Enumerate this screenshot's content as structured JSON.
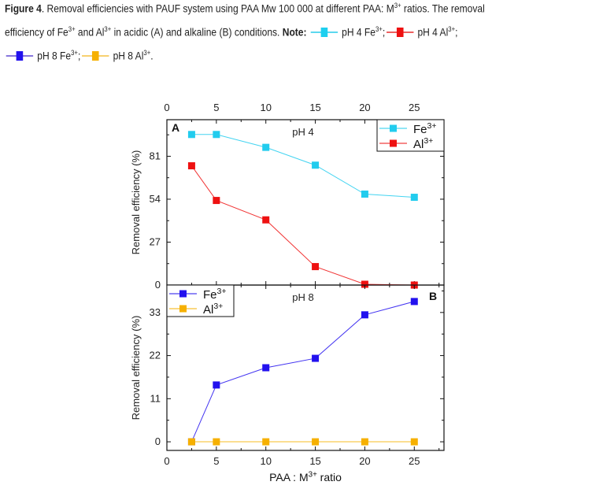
{
  "caption": {
    "figure_label": "Figure 4",
    "line1": ". Removal efficiencies with PAUF system using PAA Mw 100 000 at different PAA: M",
    "line1_sup": "3+",
    "line1_end": " ratios. The removal",
    "line2_a": "efficiency of Fe",
    "line2_b": " and Al",
    "line2_c": " in acidic (A) and alkaline (B) conditions. ",
    "sup": "3+",
    "note": "Note:",
    "legend": [
      {
        "label": "pH 4 Fe",
        "sup": "3+",
        "end": ";",
        "color": "#1ecfef"
      },
      {
        "label": "pH 4 Al",
        "sup": "3+",
        "end": ";",
        "color": "#ee1111"
      },
      {
        "label": "pH 8 Fe",
        "sup": "3+",
        "end": ";",
        "color": "#2211ee"
      },
      {
        "label": "pH 8 Al",
        "sup": "3+",
        "end": ".",
        "color": "#f6b000"
      }
    ]
  },
  "chart_data": [
    {
      "type": "line",
      "panel_label": "A",
      "title": "pH 4",
      "xlabel": "",
      "ylabel": "Removal efficiency (%)",
      "xlim": [
        0,
        28
      ],
      "ylim": [
        0,
        104
      ],
      "xticks": [
        "0",
        "5",
        "10",
        "15",
        "20",
        "25"
      ],
      "yticks": [
        "0",
        "27",
        "54",
        "81"
      ],
      "legend_position": "top-right",
      "x": [
        2.5,
        5,
        10,
        15,
        20,
        25
      ],
      "series": [
        {
          "name": "Fe",
          "sup": "3+",
          "color": "#22ccee",
          "values": [
            94.7,
            94.7,
            86.6,
            75.4,
            57.2,
            55.2
          ]
        },
        {
          "name": "Al",
          "sup": "3+",
          "color": "#ee1111",
          "values": [
            75,
            53.2,
            41,
            11.6,
            0.5,
            0
          ]
        }
      ]
    },
    {
      "type": "line",
      "panel_label": "B",
      "title": "pH 8",
      "xlabel": "PAA : M",
      "xlabel_sup": "3+",
      "xlabel_end": " ratio",
      "ylabel": "Removal efficiency (%)",
      "xlim": [
        0,
        28
      ],
      "ylim": [
        -2.2,
        40
      ],
      "xticks": [
        "0",
        "5",
        "10",
        "15",
        "20",
        "25"
      ],
      "yticks": [
        "0",
        "11",
        "22",
        "33"
      ],
      "legend_position": "top-left",
      "x": [
        2.5,
        5,
        10,
        15,
        20,
        25
      ],
      "series": [
        {
          "name": "Fe",
          "sup": "3+",
          "color": "#2211ee",
          "values": [
            0,
            14.5,
            18.9,
            21.3,
            32.4,
            35.8
          ]
        },
        {
          "name": "Al",
          "sup": "3+",
          "color": "#f6b000",
          "values": [
            0,
            0,
            0,
            0,
            0,
            0
          ]
        }
      ]
    }
  ]
}
